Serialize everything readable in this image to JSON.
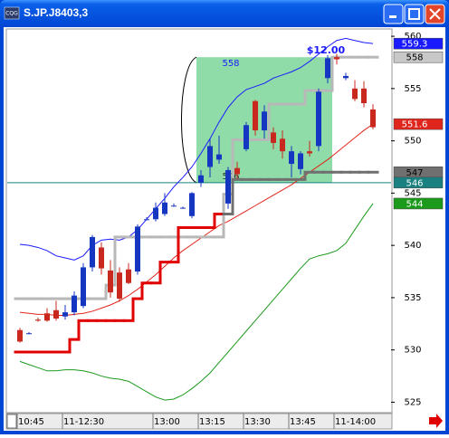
{
  "window": {
    "app_icon": "CQG",
    "title": "S.JP.J8403,3"
  },
  "chart_data": {
    "type": "candlestick",
    "categories": [
      "10:45",
      null,
      null,
      null,
      null,
      "11-12:30",
      null,
      null,
      null,
      null,
      null,
      null,
      null,
      null,
      null,
      "13:00",
      null,
      null,
      null,
      null,
      "13:15",
      null,
      null,
      null,
      null,
      "13:30",
      null,
      null,
      null,
      null,
      "13:45",
      null,
      null,
      null,
      null,
      "11-14:00",
      null,
      null,
      null,
      null
    ],
    "open": [
      531.9,
      531.6,
      532.9,
      533.5,
      533.8,
      533.2,
      533.6,
      534.2,
      537.9,
      539.8,
      537.6,
      537.4,
      537.7,
      537.5,
      542.5,
      542.5,
      543.0,
      543.8,
      543.6,
      542.8,
      546.0,
      547.5,
      548.2,
      544.0,
      547.4,
      549.2,
      553.8,
      551.0,
      550.8,
      550.2,
      547.8,
      547.3,
      549.0,
      549.5,
      556.0,
      558.0,
      556.0,
      555.0,
      555.0,
      553.0
    ],
    "high": [
      532.1,
      531.7,
      533.1,
      534.0,
      534.7,
      534.3,
      535.6,
      538.3,
      541.0,
      540.3,
      538.6,
      537.9,
      538.3,
      542.0,
      542.7,
      544.1,
      545.0,
      544.0,
      543.7,
      545.1,
      547.2,
      550.2,
      550.5,
      547.5,
      548.0,
      551.8,
      553.9,
      553.4,
      551.3,
      551.0,
      549.5,
      549.0,
      550.0,
      555.0,
      558.2,
      558.3,
      556.5,
      555.8,
      555.7,
      553.5
    ],
    "low": [
      530.7,
      531.5,
      532.7,
      532.7,
      532.8,
      532.9,
      533.3,
      534.0,
      537.5,
      537.2,
      535.0,
      534.6,
      536.3,
      537.2,
      542.4,
      542.3,
      542.8,
      543.7,
      543.5,
      542.6,
      545.6,
      546.5,
      547.8,
      543.5,
      546.4,
      549.0,
      550.5,
      550.2,
      549.2,
      548.3,
      546.5,
      546.8,
      548.5,
      549.0,
      555.5,
      557.3,
      555.8,
      553.8,
      553.2,
      551.1
    ],
    "close": [
      530.8,
      531.6,
      532.8,
      532.8,
      533.0,
      533.6,
      535.2,
      537.9,
      540.8,
      537.8,
      535.5,
      534.9,
      536.4,
      541.8,
      542.5,
      543.6,
      544.1,
      543.8,
      543.6,
      545.0,
      546.7,
      549.5,
      548.7,
      547.2,
      546.8,
      551.5,
      551.0,
      552.8,
      549.8,
      549.0,
      549.0,
      548.8,
      548.8,
      554.7,
      557.9,
      557.8,
      556.2,
      554.0,
      553.6,
      551.3
    ],
    "up_color": "#1436c0",
    "down_color": "#c8281e",
    "series": [
      {
        "kind": "line",
        "color": "#1a1aff",
        "width": 1,
        "values": [
          540.1,
          540.0,
          539.8,
          539.5,
          539.0,
          538.8,
          538.6,
          539.0,
          540.0,
          540.5,
          540.6,
          540.5,
          540.8,
          541.5,
          542.5,
          543.5,
          544.5,
          545.6,
          546.5,
          547.5,
          548.8,
          550.2,
          551.8,
          553.2,
          554.2,
          554.9,
          555.2,
          555.5,
          556.0,
          556.3,
          556.6,
          557.0,
          557.6,
          558.3,
          559.0,
          559.6,
          559.8,
          559.6,
          559.4,
          559.3
        ]
      },
      {
        "kind": "line",
        "color": "#e0261c",
        "width": 1,
        "values": [
          533.6,
          533.5,
          533.4,
          533.4,
          533.3,
          533.3,
          533.4,
          533.5,
          533.7,
          534.0,
          534.3,
          534.7,
          535.2,
          535.8,
          536.5,
          537.2,
          538.0,
          538.8,
          539.5,
          540.1,
          540.7,
          541.3,
          541.9,
          542.3,
          542.8,
          543.3,
          543.8,
          544.3,
          544.8,
          545.3,
          545.8,
          546.4,
          547.0,
          547.6,
          548.2,
          548.9,
          549.6,
          550.3,
          551.0,
          551.6
        ]
      },
      {
        "kind": "line",
        "color": "#1c9a1c",
        "width": 1,
        "values": [
          528.9,
          528.6,
          528.3,
          528.0,
          528.0,
          528.1,
          528.1,
          528.0,
          527.8,
          527.5,
          527.3,
          527.2,
          527.0,
          526.5,
          526.0,
          525.5,
          525.2,
          525.3,
          525.7,
          526.3,
          527.0,
          527.8,
          528.8,
          529.8,
          530.8,
          531.8,
          532.8,
          533.8,
          534.8,
          535.8,
          536.8,
          537.8,
          538.7,
          539.0,
          539.2,
          539.5,
          540.2,
          541.5,
          542.8,
          544.0
        ]
      },
      {
        "kind": "step",
        "color": "#b8b8b8",
        "width": 3,
        "values": [
          534.9,
          534.9,
          534.9,
          534.9,
          534.9,
          534.9,
          534.9,
          534.9,
          534.9,
          534.9,
          536.2,
          540.8,
          540.8,
          540.8,
          540.8,
          540.8,
          540.8,
          540.8,
          540.8,
          540.8,
          540.8,
          540.8,
          540.8,
          544.9,
          550.1,
          550.1,
          550.1,
          550.1,
          553.5,
          553.5,
          553.5,
          553.5,
          554.8,
          554.8,
          554.8,
          558,
          558,
          558,
          558,
          558
        ]
      },
      {
        "kind": "step",
        "color": "#e00000",
        "width": 3,
        "values": [
          529.8,
          529.8,
          529.8,
          529.8,
          529.8,
          529.8,
          531.0,
          532.8,
          532.8,
          532.8,
          532.8,
          532.8,
          532.8,
          534.9,
          536.4,
          536.4,
          538.4,
          538.4,
          541.7,
          541.7,
          541.7,
          541.7,
          543.0,
          543.0,
          null,
          null,
          null,
          null,
          null,
          null,
          null,
          null,
          null,
          null,
          null,
          null,
          null,
          null,
          null,
          null
        ]
      },
      {
        "kind": "step",
        "color": "#707070",
        "width": 3,
        "values": [
          null,
          null,
          null,
          null,
          null,
          null,
          null,
          null,
          null,
          null,
          null,
          null,
          null,
          null,
          null,
          null,
          null,
          null,
          null,
          null,
          null,
          null,
          null,
          543.0,
          546.3,
          546.3,
          546.3,
          546.3,
          546.3,
          546.3,
          546.3,
          546.3,
          547,
          547,
          547,
          547,
          547,
          547,
          547,
          547
        ]
      }
    ],
    "box": {
      "from": 20,
      "to": 34,
      "top": 558,
      "bottom": 546,
      "color": "#8fdca8",
      "top_label": "558",
      "bottom_label": "546",
      "label": "$12.00"
    },
    "price_tags": [
      {
        "value": 559.3,
        "color": "#1a1aff",
        "text_color": "#ffffff"
      },
      {
        "value": 558,
        "color": "#c8c8c8",
        "text_color": "#000000"
      },
      {
        "value": 551.6,
        "color": "#e0261c",
        "text_color": "#ffffff"
      },
      {
        "value": 547,
        "color": "#707070",
        "text_color": "#000000"
      },
      {
        "value": 546,
        "color": "#1a8080",
        "text_color": "#ffffff",
        "line": true
      },
      {
        "value": 544,
        "color": "#1c9a1c",
        "text_color": "#ffffff"
      }
    ],
    "ylim": [
      524,
      560.7
    ],
    "yticks": [
      525,
      530,
      535,
      540,
      545,
      550,
      555,
      560
    ]
  }
}
